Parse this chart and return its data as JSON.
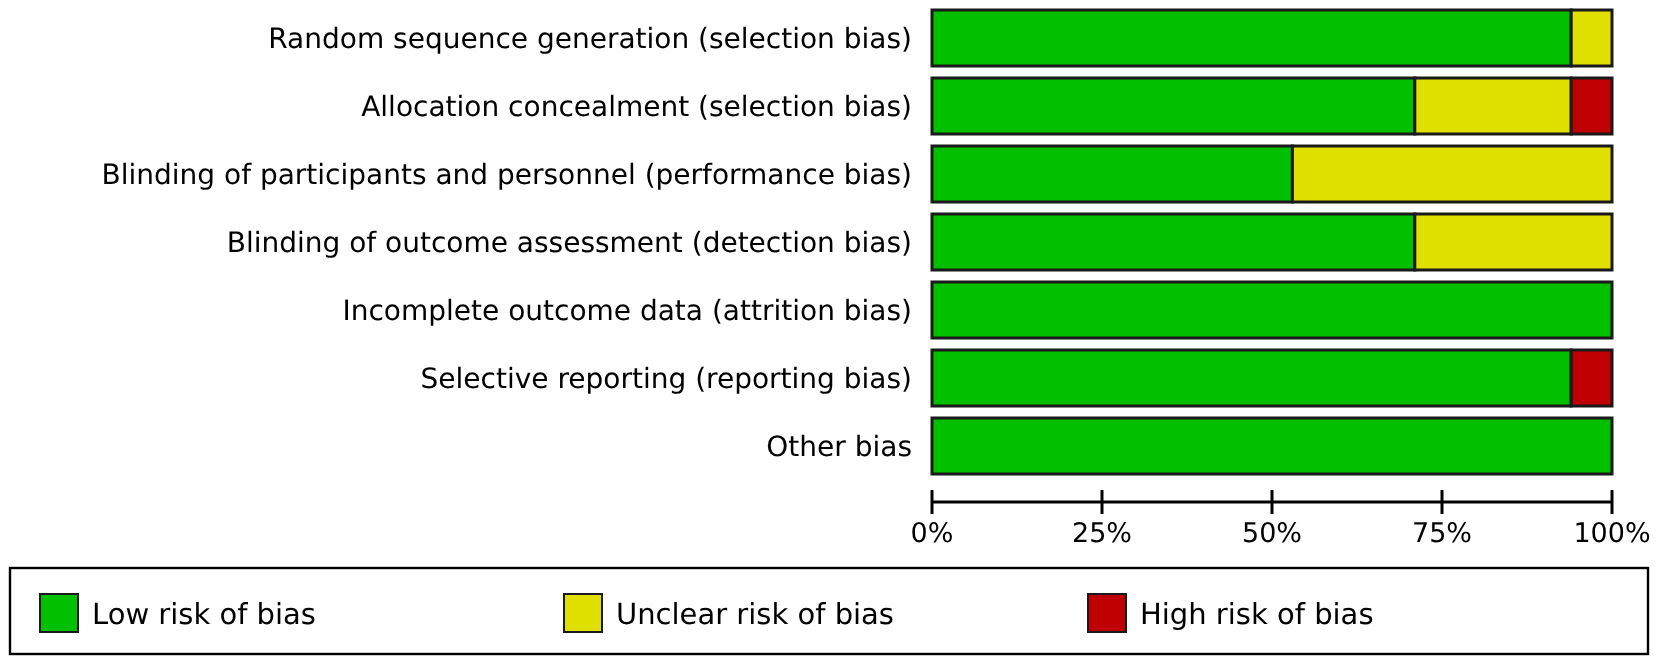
{
  "chart_data": {
    "type": "bar",
    "orientation": "horizontal",
    "stacked": true,
    "categories": [
      "Random sequence generation (selection bias)",
      "Allocation concealment (selection bias)",
      "Blinding of participants and personnel (performance bias)",
      "Blinding of outcome assessment (detection bias)",
      "Incomplete outcome data (attrition bias)",
      "Selective reporting (reporting bias)",
      "Other bias"
    ],
    "series": [
      {
        "name": "Low risk of bias",
        "color": "#00c000",
        "values": [
          94,
          71,
          53,
          71,
          100,
          94,
          100
        ]
      },
      {
        "name": "Unclear risk of bias",
        "color": "#e0e000",
        "values": [
          6,
          23,
          47,
          29,
          0,
          0,
          0
        ]
      },
      {
        "name": "High risk of bias",
        "color": "#c00000",
        "values": [
          0,
          6,
          0,
          0,
          0,
          6,
          0
        ]
      }
    ],
    "xlim": [
      0,
      100
    ],
    "xticks": [
      {
        "value": 0,
        "label": "0%"
      },
      {
        "value": 25,
        "label": "25%"
      },
      {
        "value": 50,
        "label": "50%"
      },
      {
        "value": 75,
        "label": "75%"
      },
      {
        "value": 100,
        "label": "100%"
      }
    ],
    "grid": false,
    "legend": "bottom"
  }
}
